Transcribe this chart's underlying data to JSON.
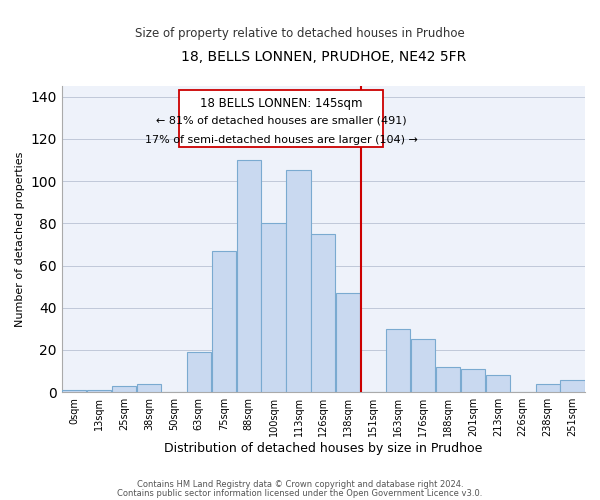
{
  "title": "18, BELLS LONNEN, PRUDHOE, NE42 5FR",
  "subtitle": "Size of property relative to detached houses in Prudhoe",
  "xlabel": "Distribution of detached houses by size in Prudhoe",
  "ylabel": "Number of detached properties",
  "bin_labels": [
    "0sqm",
    "13sqm",
    "25sqm",
    "38sqm",
    "50sqm",
    "63sqm",
    "75sqm",
    "88sqm",
    "100sqm",
    "113sqm",
    "126sqm",
    "138sqm",
    "151sqm",
    "163sqm",
    "176sqm",
    "188sqm",
    "201sqm",
    "213sqm",
    "226sqm",
    "238sqm",
    "251sqm"
  ],
  "bar_values": [
    1,
    1,
    3,
    4,
    0,
    19,
    67,
    110,
    80,
    105,
    75,
    47,
    0,
    30,
    25,
    12,
    11,
    8,
    0,
    4,
    6
  ],
  "bar_color": "#c9d9f0",
  "bar_edge_color": "#7aaad0",
  "vline_color": "#cc0000",
  "annotation_title": "18 BELLS LONNEN: 145sqm",
  "annotation_line1": "← 81% of detached houses are smaller (491)",
  "annotation_line2": "17% of semi-detached houses are larger (104) →",
  "annotation_box_color": "#ffffff",
  "annotation_box_edge": "#cc0000",
  "footer1": "Contains HM Land Registry data © Crown copyright and database right 2024.",
  "footer2": "Contains public sector information licensed under the Open Government Licence v3.0.",
  "ylim": [
    0,
    145
  ],
  "yticks": [
    0,
    20,
    40,
    60,
    80,
    100,
    120,
    140
  ],
  "ax_bg_color": "#eef2fa"
}
